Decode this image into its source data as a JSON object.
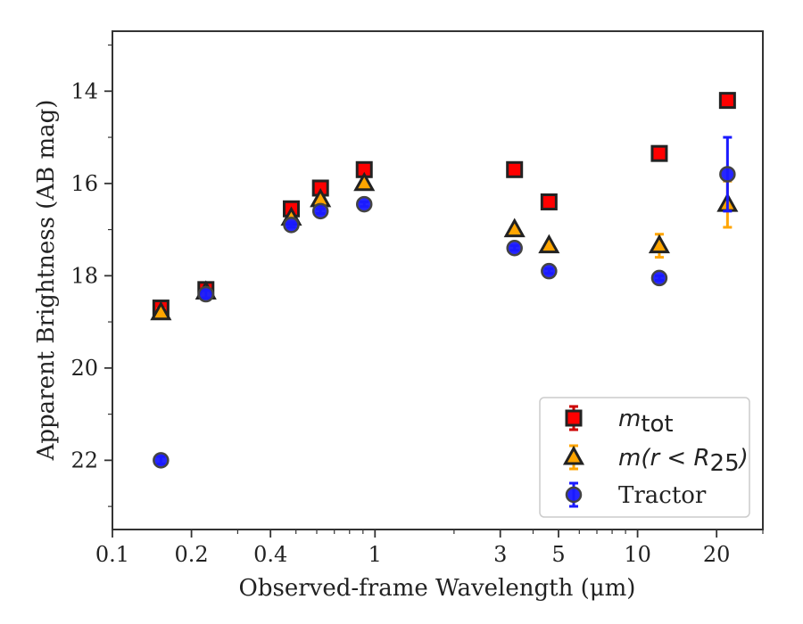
{
  "chart_data": {
    "type": "scatter",
    "xlabel": "Observed-frame Wavelength (μm)",
    "ylabel": "Apparent Brightness (AB mag)",
    "xscale": "log",
    "xlim": [
      0.1,
      30
    ],
    "ylim": [
      23.5,
      12.7
    ],
    "y_inverted": true,
    "x_ticks": [
      {
        "value": 0.1,
        "label": "0.1"
      },
      {
        "value": 0.2,
        "label": "0.2"
      },
      {
        "value": 0.4,
        "label": "0.4"
      },
      {
        "value": 1,
        "label": "1"
      },
      {
        "value": 3,
        "label": "3"
      },
      {
        "value": 5,
        "label": "5"
      },
      {
        "value": 10,
        "label": "10"
      },
      {
        "value": 20,
        "label": "20"
      }
    ],
    "y_ticks": [
      {
        "value": 14,
        "label": "14"
      },
      {
        "value": 16,
        "label": "16"
      },
      {
        "value": 18,
        "label": "18"
      },
      {
        "value": 20,
        "label": "20"
      },
      {
        "value": 22,
        "label": "22"
      }
    ],
    "grid": false,
    "legend_position": "lower-right",
    "series": [
      {
        "name": "m_tot",
        "legend_label": {
          "base": "m",
          "sub": "tot"
        },
        "marker": "square",
        "color": "#ff0000",
        "errcolor": "#cc0000",
        "x": [
          0.153,
          0.227,
          0.48,
          0.62,
          0.91,
          3.4,
          4.6,
          12.1,
          22
        ],
        "y": [
          18.7,
          18.3,
          16.55,
          16.1,
          15.7,
          15.7,
          16.4,
          15.35,
          14.2
        ],
        "yerr": [
          0.08,
          0.08,
          0.05,
          0.05,
          0.05,
          0.03,
          0.03,
          0.05,
          0.06
        ]
      },
      {
        "name": "m(r < R25)",
        "legend_label": {
          "base": "m(r < R",
          "sub": "25",
          "tail": ")"
        },
        "marker": "triangle",
        "color": "#ffa500",
        "errcolor": "#ffa500",
        "x": [
          0.153,
          0.227,
          0.48,
          0.62,
          0.91,
          3.4,
          4.6,
          12.1,
          22
        ],
        "y": [
          18.8,
          18.35,
          16.75,
          16.35,
          16.0,
          17.0,
          17.35,
          17.35,
          16.45
        ],
        "yerr": [
          0.08,
          0.08,
          0.05,
          0.05,
          0.05,
          0.05,
          0.05,
          0.25,
          0.5
        ]
      },
      {
        "name": "Tractor",
        "marker": "circle",
        "color": "#1a1aff",
        "errcolor": "#1a1aff",
        "x": [
          0.153,
          0.227,
          0.48,
          0.62,
          0.91,
          3.4,
          4.6,
          12.1,
          22
        ],
        "y": [
          22.0,
          18.4,
          16.9,
          16.6,
          16.45,
          17.4,
          17.9,
          18.05,
          15.8
        ],
        "yerr": [
          0.08,
          0.08,
          0.05,
          0.05,
          0.05,
          0.05,
          0.05,
          0.05,
          0.8
        ]
      }
    ]
  },
  "colors": {
    "axis": "#333333",
    "marker_edge": "#222222"
  }
}
